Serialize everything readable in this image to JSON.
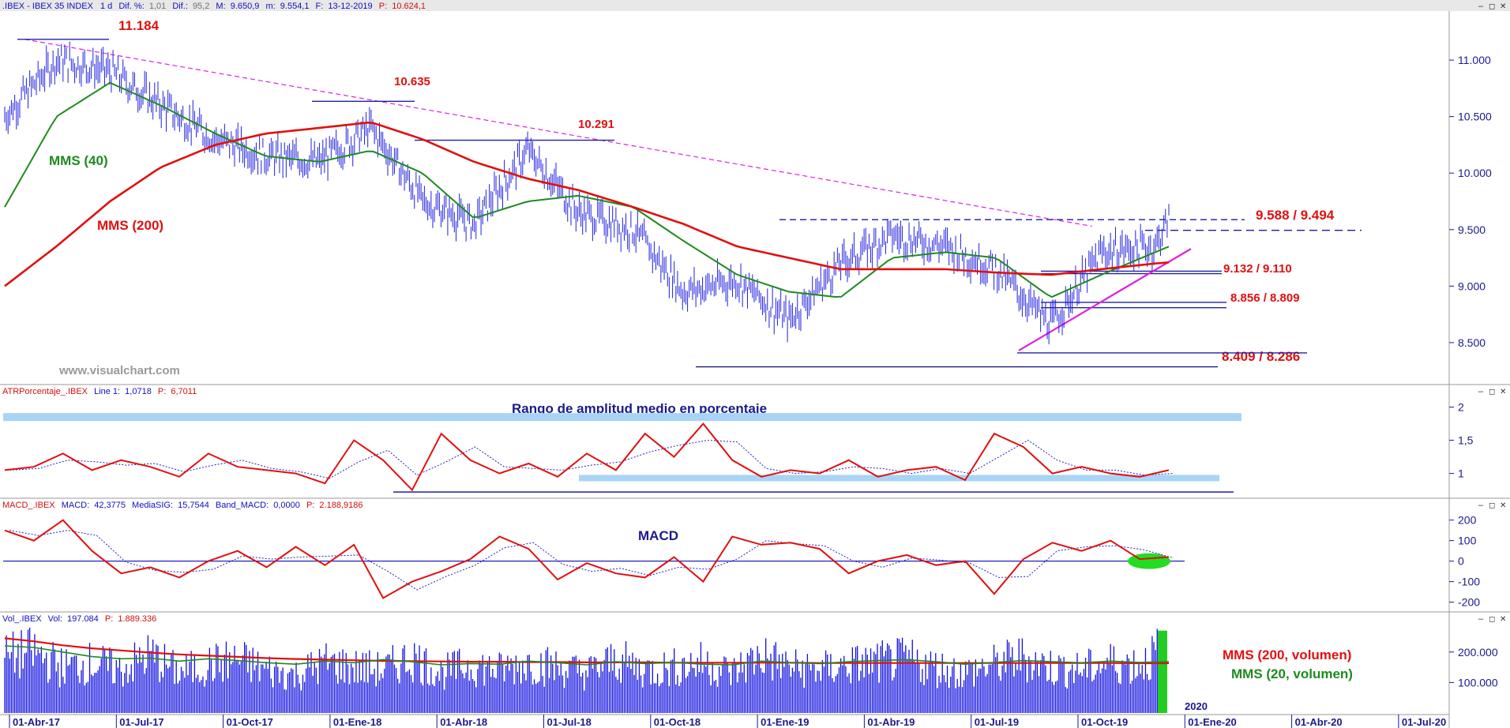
{
  "colors": {
    "price": "#2020e0",
    "mms40": "#1f8a1f",
    "mms200": "#e01010",
    "trend_dashed": "#e020e0",
    "support_line": "#2020a0",
    "atr_band": "#a8d4f5",
    "volume": "#1010e0",
    "volume_last": "#22cc22",
    "header_text": "#1010c0",
    "header_red": "#d01010",
    "macd_ellipse": "#22dd22"
  },
  "window_controls": {
    "minimize": "–",
    "restore": "◻",
    "close": "✕"
  },
  "chart_data": [
    {
      "panel": "price",
      "type": "line",
      "header": {
        "symbol": ".IBEX - IBEX 35 INDEX",
        "period": "1 d",
        "diff_pct_label": "Dif. %:",
        "diff_pct": "1,01",
        "diff_label": "Dif.:",
        "diff": "95,2",
        "max_label": "M:",
        "max": "9.650,9",
        "min_label": "m:",
        "min": "9.554,1",
        "date_label": "F:",
        "date": "13-12-2019",
        "last_label": "P:",
        "last": "10.624,1"
      },
      "watermark": "www.visualchart.com",
      "y_ticks": [
        "11.000",
        "10.500",
        "10.000",
        "9.500",
        "9.000",
        "8.500"
      ],
      "y_tick_values": [
        11000,
        10500,
        10000,
        9500,
        9000,
        8500
      ],
      "ylim": [
        8150,
        11420
      ],
      "x": [
        "2017-03-01",
        "2017-04-15",
        "2017-06-01",
        "2017-07-15",
        "2017-09-01",
        "2017-10-15",
        "2017-12-01",
        "2018-01-15",
        "2018-03-01",
        "2018-04-15",
        "2018-06-01",
        "2018-07-15",
        "2018-09-01",
        "2018-10-15",
        "2018-12-01",
        "2019-01-15",
        "2019-03-01",
        "2019-04-15",
        "2019-06-01",
        "2019-07-15",
        "2019-09-01",
        "2019-10-15",
        "2019-12-01",
        "2019-12-13"
      ],
      "series": [
        {
          "name": "IBEX",
          "values": [
            10500,
            11000,
            10900,
            10600,
            10300,
            10150,
            10100,
            10400,
            9750,
            9550,
            10200,
            9650,
            9500,
            8950,
            9050,
            8700,
            9200,
            9450,
            9350,
            9150,
            8650,
            9300,
            9350,
            9600
          ]
        },
        {
          "name": "MMS (40)",
          "values": [
            9700,
            10500,
            10800,
            10600,
            10350,
            10150,
            10100,
            10200,
            10000,
            9600,
            9750,
            9800,
            9700,
            9400,
            9100,
            8950,
            8900,
            9250,
            9300,
            9250,
            8900,
            9100,
            9300,
            9350
          ]
        },
        {
          "name": "MMS (200)",
          "values": [
            9000,
            9350,
            9750,
            10050,
            10250,
            10350,
            10400,
            10450,
            10300,
            10100,
            9950,
            9850,
            9700,
            9550,
            9350,
            9250,
            9150,
            9150,
            9150,
            9120,
            9100,
            9150,
            9200,
            9210
          ]
        }
      ],
      "annotations": [
        {
          "text": "11.184",
          "value": 11184
        },
        {
          "text": "10.635",
          "value": 10635
        },
        {
          "text": "10.291",
          "value": 10291
        },
        {
          "text": "9.588 / 9.494",
          "values": [
            9588,
            9494
          ]
        },
        {
          "text": "9.132 / 9.110",
          "values": [
            9132,
            9110
          ]
        },
        {
          "text": "8.856 / 8.809",
          "values": [
            8856,
            8809
          ]
        },
        {
          "text": "8.409 / 8.286",
          "values": [
            8409,
            8286
          ]
        }
      ],
      "series_labels": [
        {
          "text": "MMS (40)",
          "color": "#1f8a1f"
        },
        {
          "text": "MMS (200)",
          "color": "#e01010"
        }
      ]
    },
    {
      "panel": "atr",
      "type": "line",
      "header": {
        "name": "ATRPorcentaje_.IBEX",
        "line_label": "Line 1:",
        "line_value": "1,0718",
        "last_label": "P:",
        "last": "6,7011"
      },
      "title": "Rango de amplitud medio en porcentaje",
      "y_ticks": [
        "2",
        "1,5",
        "1"
      ],
      "y_tick_values": [
        2,
        1.5,
        1
      ],
      "ylim": [
        0.65,
        2.15
      ],
      "values": [
        1.05,
        1.1,
        1.3,
        1.05,
        1.2,
        1.1,
        0.95,
        1.3,
        1.1,
        1.05,
        1.0,
        0.85,
        1.5,
        1.2,
        0.75,
        1.6,
        1.2,
        1.0,
        1.15,
        0.95,
        1.3,
        1.05,
        1.6,
        1.25,
        1.75,
        1.2,
        0.95,
        1.05,
        1.0,
        1.2,
        0.95,
        1.05,
        1.1,
        0.9,
        1.6,
        1.4,
        1.0,
        1.1,
        1.0,
        0.95,
        1.05
      ]
    },
    {
      "panel": "macd",
      "type": "line",
      "header": {
        "name": "MACD_.IBEX",
        "macd_label": "MACD:",
        "macd": "42,3775",
        "signal_label": "MediaSIG:",
        "signal": "15,7544",
        "band_label": "Band_MACD:",
        "band": "0,0000",
        "last_label": "P:",
        "last": "2.188,9186"
      },
      "title": "MACD",
      "y_ticks": [
        "200",
        "100",
        "0",
        "-100",
        "-200"
      ],
      "y_tick_values": [
        200,
        100,
        0,
        -100,
        -200
      ],
      "ylim": [
        -240,
        245
      ],
      "values": [
        150,
        100,
        200,
        50,
        -60,
        -30,
        -80,
        0,
        50,
        -30,
        70,
        -20,
        80,
        -180,
        -100,
        -50,
        10,
        120,
        60,
        -90,
        -10,
        -60,
        -80,
        20,
        -100,
        120,
        80,
        90,
        60,
        -60,
        0,
        30,
        -20,
        0,
        -160,
        10,
        90,
        50,
        100,
        10,
        20
      ]
    },
    {
      "panel": "volume",
      "type": "bar",
      "header": {
        "name": "Vol_.IBEX",
        "vol_label": "Vol:",
        "vol": "197.084",
        "last_label": "P:",
        "last": "1.889.336"
      },
      "y_ticks": [
        "200.000",
        "100.000"
      ],
      "y_tick_values": [
        200000,
        100000
      ],
      "ylim": [
        0,
        290000
      ],
      "volume_levels": [
        220000,
        240000,
        180000,
        200000,
        170000,
        230000,
        160000,
        190000,
        210000,
        170000,
        150000,
        200000,
        180000,
        170000,
        220000,
        160000,
        190000,
        170000,
        200000,
        180000,
        160000,
        210000,
        170000,
        180000,
        200000,
        160000,
        230000,
        180000,
        170000,
        190000,
        200000,
        210000,
        180000,
        160000,
        190000,
        220000,
        180000,
        170000,
        200000,
        190000,
        270000
      ],
      "mms200_levels": [
        245000,
        235000,
        222000,
        212000,
        205000,
        198000,
        192000,
        188000,
        184000,
        180000,
        177000,
        175000,
        173000,
        171000,
        170000,
        169000,
        168000,
        168000,
        167000,
        167000,
        166000,
        166000,
        166000,
        165000,
        165000,
        165000,
        165000,
        165000,
        164000,
        164000,
        164000,
        164000,
        164000,
        164000,
        164000,
        164000,
        164000,
        164000,
        164000,
        163000,
        163000
      ],
      "mms20_levels": [
        220000,
        215000,
        200000,
        185000,
        178000,
        180000,
        170000,
        178000,
        172000,
        165000,
        160000,
        170000,
        165000,
        175000,
        168000,
        158000,
        162000,
        160000,
        170000,
        165000,
        158000,
        168000,
        162000,
        166000,
        160000,
        158000,
        170000,
        165000,
        162000,
        168000,
        172000,
        175000,
        168000,
        160000,
        166000,
        172000,
        168000,
        165000,
        170000,
        166000,
        168000
      ],
      "series_labels": [
        {
          "text": "MMS (200, volumen)",
          "color": "#e01010"
        },
        {
          "text": "MMS (20, volumen)",
          "color": "#1f8a1f"
        }
      ],
      "year_marker": "2020"
    }
  ],
  "x_axis": {
    "labels": [
      "01-Abr-17",
      "01-Jul-17",
      "01-Oct-17",
      "01-Ene-18",
      "01-Abr-18",
      "01-Jul-18",
      "01-Oct-18",
      "01-Ene-19",
      "01-Abr-19",
      "01-Jul-19",
      "01-Oct-19",
      "01-Ene-20",
      "01-Abr-20",
      "01-Jul-20"
    ]
  }
}
